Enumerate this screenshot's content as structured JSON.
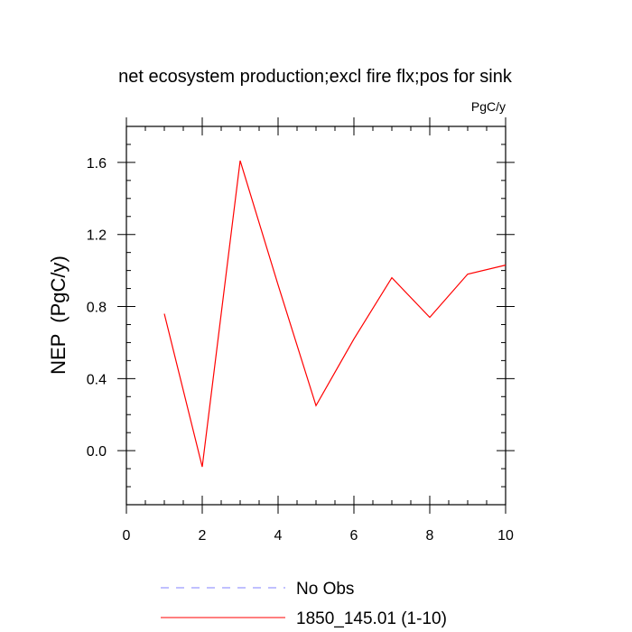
{
  "chart_data": {
    "type": "line",
    "title": "net ecosystem production;excl fire flx;pos for sink",
    "units": "PgC/y",
    "xlabel": "",
    "ylabel": "NEP  (PgC/y)",
    "xlim": [
      0,
      10
    ],
    "ylim": [
      -0.3,
      1.8
    ],
    "x_ticks": [
      0,
      2,
      4,
      6,
      8,
      10
    ],
    "x_tick_labels": [
      "0",
      "2",
      "4",
      "6",
      "8",
      "10"
    ],
    "y_ticks": [
      0.0,
      0.4,
      0.8,
      1.2,
      1.6
    ],
    "y_tick_labels": [
      "0.0",
      "0.4",
      "0.8",
      "1.2",
      "1.6"
    ],
    "grid": false,
    "legend_position": "bottom",
    "series": [
      {
        "name": "No Obs",
        "color": "#8080ff",
        "dash": "dashed",
        "x": [],
        "y": []
      },
      {
        "name": "1850_145.01 (1-10)",
        "color": "#ff0000",
        "dash": "solid",
        "x": [
          1,
          2,
          3,
          4,
          5,
          6,
          7,
          8,
          9,
          10
        ],
        "y": [
          0.76,
          -0.09,
          1.61,
          0.92,
          0.25,
          0.62,
          0.96,
          0.74,
          0.98,
          1.03
        ]
      }
    ]
  }
}
